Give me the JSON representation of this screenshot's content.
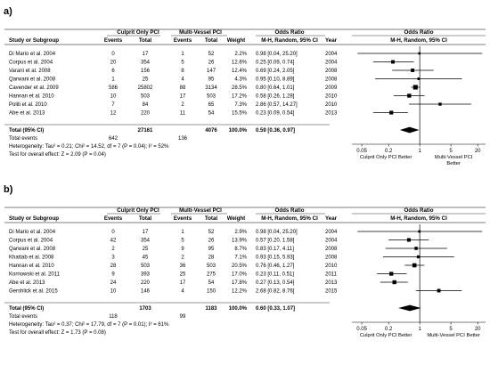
{
  "chart_data": [
    {
      "panel": "a)",
      "type": "forest",
      "group_headers": {
        "g1": "Culprit Only PCI",
        "g2": "Multi-Vessel PCI",
        "effect": "Odds Ratio",
        "plot": "Odds Ratio"
      },
      "col_headers": {
        "study": "Study or Subgroup",
        "e1": "Events",
        "t1": "Total",
        "e2": "Events",
        "t2": "Total",
        "weight": "Weight",
        "method": "M-H, Random, 95% CI",
        "year": "Year",
        "plot_method": "M-H, Random, 95% CI"
      },
      "studies": [
        {
          "name": "Di Mario et al. 2004",
          "e1": "0",
          "t1": "17",
          "e2": "1",
          "t2": "52",
          "weight": "2.2%",
          "ci_text": "0.98 [0.04, 25.20]",
          "year": "2004",
          "or": 0.98,
          "lo": 0.04,
          "hi": 25.2
        },
        {
          "name": "Corpus et al. 2004",
          "e1": "20",
          "t1": "354",
          "e2": "5",
          "t2": "26",
          "weight": "12.6%",
          "ci_text": "0.25 [0.09, 0.74]",
          "year": "2004",
          "or": 0.25,
          "lo": 0.09,
          "hi": 0.74
        },
        {
          "name": "Varani et al. 2008",
          "e1": "6",
          "t1": "156",
          "e2": "8",
          "t2": "147",
          "weight": "12.4%",
          "ci_text": "0.69 [0.24, 2.05]",
          "year": "2008",
          "or": 0.69,
          "lo": 0.24,
          "hi": 2.05
        },
        {
          "name": "Qarwani et al. 2008",
          "e1": "1",
          "t1": "25",
          "e2": "4",
          "t2": "95",
          "weight": "4.3%",
          "ci_text": "0.95 [0.10, 8.89]",
          "year": "2008",
          "or": 0.95,
          "lo": 0.1,
          "hi": 8.89
        },
        {
          "name": "Cavender et al. 2009",
          "e1": "586",
          "t1": "25802",
          "e2": "88",
          "t2": "3134",
          "weight": "28.5%",
          "ci_text": "0.80 [0.64, 1.01]",
          "year": "2009",
          "or": 0.8,
          "lo": 0.64,
          "hi": 1.01
        },
        {
          "name": "Hannan et al. 2010",
          "e1": "10",
          "t1": "503",
          "e2": "17",
          "t2": "503",
          "weight": "17.2%",
          "ci_text": "0.58 [0.26, 1.28]",
          "year": "2010",
          "or": 0.58,
          "lo": 0.26,
          "hi": 1.28
        },
        {
          "name": "Politi et al. 2010",
          "e1": "7",
          "t1": "84",
          "e2": "2",
          "t2": "65",
          "weight": "7.3%",
          "ci_text": "2.86 [0.57, 14.27]",
          "year": "2010",
          "or": 2.86,
          "lo": 0.57,
          "hi": 14.27
        },
        {
          "name": "Abe et al. 2013",
          "e1": "12",
          "t1": "220",
          "e2": "11",
          "t2": "54",
          "weight": "15.5%",
          "ci_text": "0.23 [0.09, 0.54]",
          "year": "2013",
          "or": 0.23,
          "lo": 0.09,
          "hi": 0.54
        }
      ],
      "total": {
        "label": "Total (95% CI)",
        "t1": "27161",
        "t2": "4076",
        "weight": "100.0%",
        "ci_text": "0.59 [0.36, 0.97]",
        "or": 0.59,
        "lo": 0.36,
        "hi": 0.97
      },
      "total_events": {
        "label": "Total events",
        "e1": "642",
        "e2": "136"
      },
      "heterogeneity": "Heterogeneity: Tau² = 0.21; Chi² = 14.52, df = 7 (P = 0.04); I² = 52%",
      "overall_test": "Test for overall effect: Z = 2.09 (P = 0.04)",
      "axis": {
        "scale": "log",
        "ticks": [
          0.05,
          0.2,
          1,
          5,
          20
        ],
        "tick_labels": [
          "0.05",
          "0.2",
          "1",
          "5",
          "20"
        ],
        "range": [
          0.05,
          20
        ]
      },
      "favours_left": "Culprit Only PCI Better",
      "favours_right": "Multi-Vessel PCI Better"
    },
    {
      "panel": "b)",
      "type": "forest",
      "group_headers": {
        "g1": "Culprit Only PCI",
        "g2": "Multi-Vessel PCI",
        "effect": "Odds Ratio",
        "plot": "Odds Ratio"
      },
      "col_headers": {
        "study": "Study or Subgroup",
        "e1": "Events",
        "t1": "Total",
        "e2": "Events",
        "t2": "Total",
        "weight": "Weight",
        "method": "M-H, Random, 95% CI",
        "year": "Year",
        "plot_method": "M-H, Random, 95% CI"
      },
      "studies": [
        {
          "name": "Di Mario et al. 2004",
          "e1": "0",
          "t1": "17",
          "e2": "1",
          "t2": "52",
          "weight": "2.9%",
          "ci_text": "0.98 [0.04, 25.20]",
          "year": "2004",
          "or": 0.98,
          "lo": 0.04,
          "hi": 25.2
        },
        {
          "name": "Corpus et al. 2004",
          "e1": "42",
          "t1": "354",
          "e2": "5",
          "t2": "26",
          "weight": "13.9%",
          "ci_text": "0.57 [0.20, 1.58]",
          "year": "2004",
          "or": 0.57,
          "lo": 0.2,
          "hi": 1.58
        },
        {
          "name": "Qarwani et al. 2008",
          "e1": "2",
          "t1": "25",
          "e2": "9",
          "t2": "95",
          "weight": "8.7%",
          "ci_text": "0.83 [0.17, 4.11]",
          "year": "2008",
          "or": 0.83,
          "lo": 0.17,
          "hi": 4.11
        },
        {
          "name": "Khattab et al. 2008",
          "e1": "3",
          "t1": "45",
          "e2": "2",
          "t2": "28",
          "weight": "7.1%",
          "ci_text": "0.93 [0.15, 5.93]",
          "year": "2008",
          "or": 0.93,
          "lo": 0.15,
          "hi": 5.93
        },
        {
          "name": "Hannan et al. 2010",
          "e1": "28",
          "t1": "503",
          "e2": "36",
          "t2": "503",
          "weight": "20.5%",
          "ci_text": "0.76 [0.46, 1.27]",
          "year": "2010",
          "or": 0.76,
          "lo": 0.46,
          "hi": 1.27
        },
        {
          "name": "Kornowski et al. 2011",
          "e1": "9",
          "t1": "393",
          "e2": "25",
          "t2": "275",
          "weight": "17.0%",
          "ci_text": "0.23 [0.11, 0.51]",
          "year": "2011",
          "or": 0.23,
          "lo": 0.11,
          "hi": 0.51
        },
        {
          "name": "Abe et al. 2013",
          "e1": "24",
          "t1": "220",
          "e2": "17",
          "t2": "54",
          "weight": "17.8%",
          "ci_text": "0.27 [0.13, 0.54]",
          "year": "2013",
          "or": 0.27,
          "lo": 0.13,
          "hi": 0.54
        },
        {
          "name": "Gershlick et al. 2015",
          "e1": "10",
          "t1": "146",
          "e2": "4",
          "t2": "150",
          "weight": "12.2%",
          "ci_text": "2.68 [0.82, 8.76]",
          "year": "2015",
          "or": 2.68,
          "lo": 0.82,
          "hi": 8.76
        }
      ],
      "total": {
        "label": "Total (95% CI)",
        "t1": "1703",
        "t2": "1183",
        "weight": "100.0%",
        "ci_text": "0.60 [0.33, 1.07]",
        "or": 0.6,
        "lo": 0.33,
        "hi": 1.07
      },
      "total_events": {
        "label": "Total events",
        "e1": "118",
        "e2": "99"
      },
      "heterogeneity": "Heterogeneity: Tau² = 0.37; Chi² = 17.79, df = 7 (P = 0.01); I² = 61%",
      "overall_test": "Test for overall effect: Z = 1.73 (P = 0.08)",
      "axis": {
        "scale": "log",
        "ticks": [
          0.05,
          0.2,
          1,
          5,
          20
        ],
        "tick_labels": [
          "0.05",
          "0.2",
          "1",
          "5",
          "20"
        ],
        "range": [
          0.05,
          20
        ]
      },
      "favours_left": "Culprit Only PCI Better",
      "favours_right": "Multi-Vessel PCI Better"
    }
  ]
}
